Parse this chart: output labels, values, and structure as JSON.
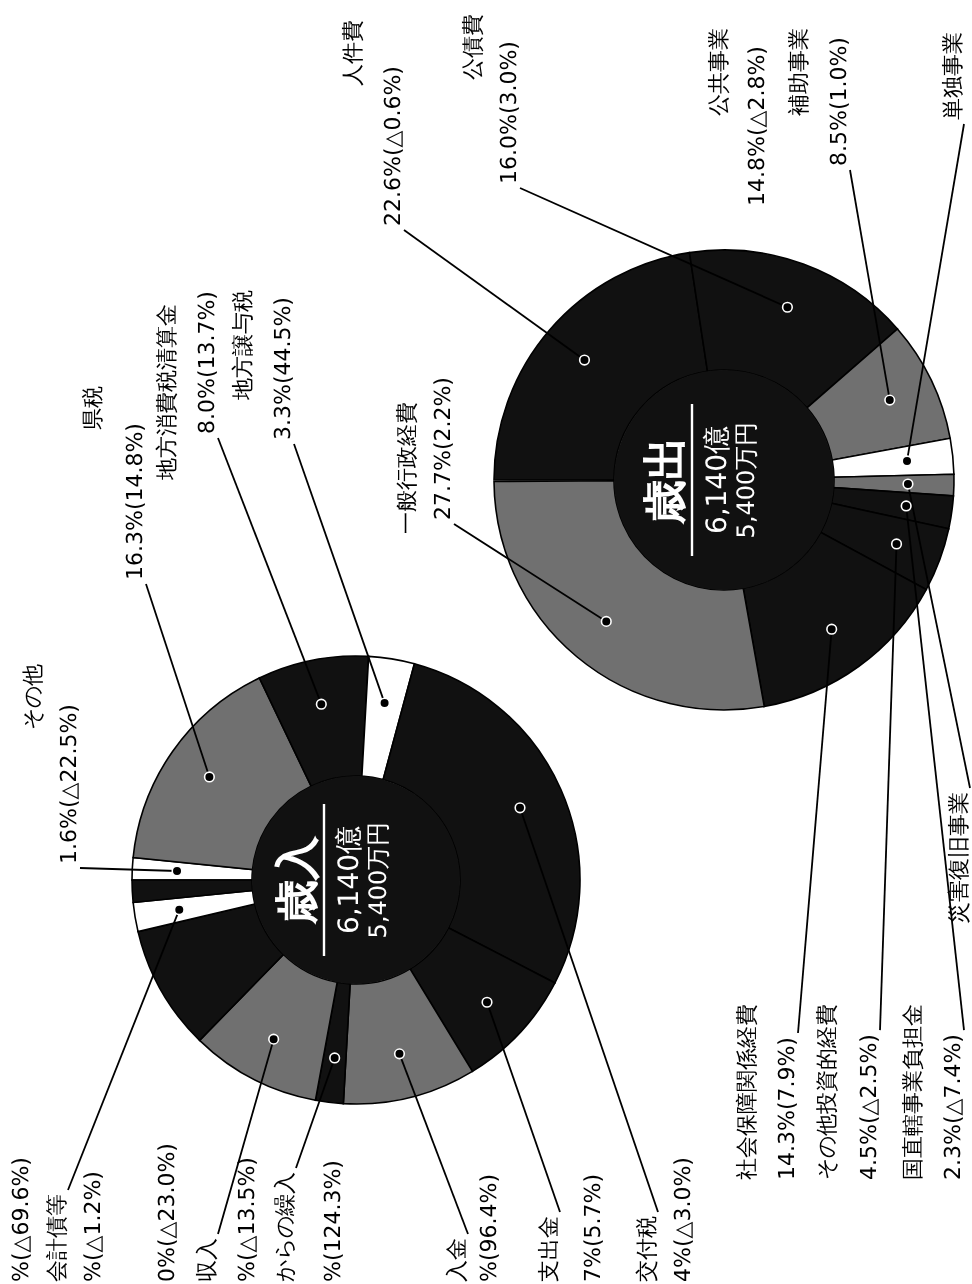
{
  "chart_data": [
    {
      "type": "donut",
      "title": "歳入",
      "annotations": [
        "6,140億",
        "5,400万円",
        "4%(△3.0%)",
        "7%(5.7%)",
        "%(96.4%)",
        "%(124.3%)",
        "%(△13.5%)",
        "0%(△23.0%)",
        "%(△1.2%)",
        "%(△69.6%)"
      ],
      "categories": [
        "その他",
        "県税",
        "地方消費税清算金",
        "地方譲与税",
        "交付税",
        "支出金",
        "入金",
        "からの繰入",
        "収入",
        null,
        "会計債等",
        null
      ],
      "values": [
        1.6,
        16.3,
        8.0,
        3.3,
        28.4,
        8.7,
        9.6,
        2.0,
        9.4,
        9.0,
        2.1,
        1.6
      ],
      "colors": [
        "#ffffff",
        "#707070",
        "#111111",
        "#ffffff",
        "#111111",
        "#111111",
        "#707070",
        "#111111",
        "#707070",
        "#111111",
        "#ffffff",
        "#111111"
      ],
      "value_labels": [
        "1.6%(△22.5%)",
        "16.3%(14.8%)",
        "8.0%(13.7%)",
        "3.3%(44.5%)",
        null,
        null,
        null,
        null,
        null,
        null,
        null,
        null
      ]
    },
    {
      "type": "donut",
      "title": "歳出",
      "annotations": [
        "6,140億",
        "5,400万円",
        "公共事業",
        "14.8%(△2.8%)"
      ],
      "categories": [
        "人件費",
        "公債費",
        "補助事業",
        "単独事業",
        "災害復旧事業",
        "国直轄事業負担金",
        "その他投資的経費",
        "社会保障関係経費",
        "一般行政経費"
      ],
      "values": [
        22.6,
        16.0,
        8.5,
        2.5,
        1.5,
        2.3,
        4.5,
        14.3,
        27.7
      ],
      "colors": [
        "#111111",
        "#111111",
        "#707070",
        "#ffffff",
        "#707070",
        "#111111",
        "#111111",
        "#111111",
        "#707070"
      ],
      "value_labels": [
        "22.6%(△0.6%)",
        "16.0%(3.0%)",
        "8.5%(1.0%)",
        null,
        null,
        "2.3%(△7.4%)",
        "4.5%(△2.5%)",
        "14.3%(7.9%)",
        "27.7%(2.2%)"
      ]
    }
  ]
}
